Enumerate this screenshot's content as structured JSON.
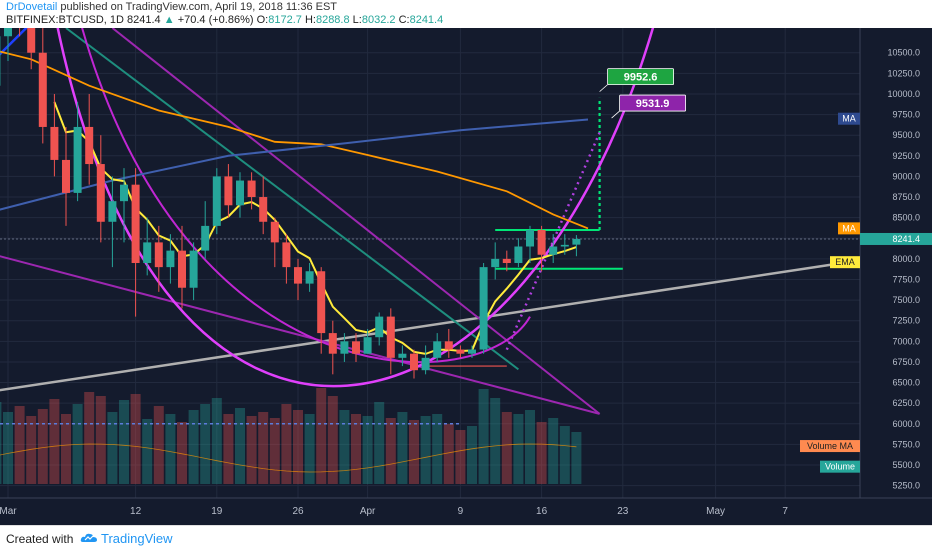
{
  "header": {
    "author": "DrDovetail",
    "published": "published on TradingView.com, April 19, 2018 11:36 EST",
    "symbol": "BITFINEX:BTCUSD, 1D",
    "last": "8241.4",
    "change": "+70.4 (+0.86%)",
    "o_label": "O:",
    "o": "8172.7",
    "h_label": "H:",
    "h": "8288.8",
    "l_label": "L:",
    "l": "8032.2",
    "c_label": "C:",
    "c": "8241.4"
  },
  "footer": {
    "created": "Created with",
    "brand": "TradingView"
  },
  "colors": {
    "background": "#141b2d",
    "up": "#26a69a",
    "down": "#ef5350",
    "ema": "#ffeb3b",
    "ma_orange": "#ff9800",
    "ma_blue": "#3f5fae",
    "purple": "#9c27b0",
    "magenta": "#e040fb",
    "green_level": "#00e676",
    "trend_gray": "#b0b0b0"
  },
  "chart_data": {
    "type": "candlestick",
    "ylim": [
      5100,
      10800
    ],
    "yticks": [
      "10500.0",
      "10250.0",
      "10000.0",
      "9750.0",
      "9500.0",
      "9250.0",
      "9000.0",
      "8750.0",
      "8500.0",
      "8250.0",
      "8000.0",
      "7750.0",
      "7500.0",
      "7250.0",
      "7000.0",
      "6750.0",
      "6500.0",
      "6250.0",
      "6000.0",
      "5750.0",
      "5500.0",
      "5250.0"
    ],
    "xticks": [
      {
        "day": 1,
        "label": "Mar"
      },
      {
        "day": 12,
        "label": "12"
      },
      {
        "day": 19,
        "label": "19"
      },
      {
        "day": 26,
        "label": "26"
      },
      {
        "day": 32,
        "label": "Apr"
      },
      {
        "day": 40,
        "label": "9"
      },
      {
        "day": 47,
        "label": "16"
      },
      {
        "day": 54,
        "label": "23"
      },
      {
        "day": 62,
        "label": "May"
      },
      {
        "day": 68,
        "label": "7"
      }
    ],
    "candles": [
      [
        10900,
        11300,
        9800,
        10100
      ],
      [
        10100,
        11000,
        9900,
        10700
      ],
      [
        10700,
        11200,
        10400,
        11000
      ],
      [
        11000,
        11400,
        10700,
        10800
      ],
      [
        10800,
        11200,
        10300,
        10500
      ],
      [
        10500,
        10900,
        9400,
        9600
      ],
      [
        9600,
        10000,
        9000,
        9200
      ],
      [
        9200,
        9600,
        8400,
        8800
      ],
      [
        8800,
        9900,
        8700,
        9600
      ],
      [
        9600,
        10000,
        8900,
        9150
      ],
      [
        9150,
        9500,
        8200,
        8450
      ],
      [
        8450,
        9000,
        7900,
        8700
      ],
      [
        8700,
        9100,
        8200,
        8900
      ],
      [
        8900,
        9100,
        7300,
        7950
      ],
      [
        7950,
        8500,
        7800,
        8200
      ],
      [
        8200,
        8400,
        7600,
        7900
      ],
      [
        7900,
        8300,
        7700,
        8100
      ],
      [
        8100,
        8400,
        7400,
        7650
      ],
      [
        7650,
        8200,
        7500,
        8100
      ],
      [
        8100,
        8700,
        8000,
        8400
      ],
      [
        8400,
        9100,
        8300,
        9000
      ],
      [
        9000,
        9150,
        8500,
        8650
      ],
      [
        8650,
        9050,
        8500,
        8950
      ],
      [
        8950,
        9050,
        8600,
        8750
      ],
      [
        8750,
        9000,
        8300,
        8450
      ],
      [
        8450,
        8500,
        7900,
        8200
      ],
      [
        8200,
        8300,
        7700,
        7900
      ],
      [
        7900,
        8000,
        7500,
        7700
      ],
      [
        7700,
        7950,
        7600,
        7850
      ],
      [
        7850,
        7900,
        6850,
        7100
      ],
      [
        7100,
        7250,
        6600,
        6850
      ],
      [
        6850,
        7100,
        6750,
        7000
      ],
      [
        7000,
        7100,
        6750,
        6850
      ],
      [
        6850,
        7150,
        6850,
        7050
      ],
      [
        7050,
        7350,
        6950,
        7300
      ],
      [
        7300,
        7400,
        6600,
        6800
      ],
      [
        6800,
        6950,
        6700,
        6850
      ],
      [
        6850,
        6900,
        6550,
        6650
      ],
      [
        6650,
        6950,
        6600,
        6800
      ],
      [
        6800,
        7100,
        6750,
        7000
      ],
      [
        7000,
        7150,
        6800,
        6900
      ],
      [
        6900,
        6950,
        6800,
        6850
      ],
      [
        6850,
        6950,
        6800,
        6900
      ],
      [
        6900,
        7950,
        6850,
        7900
      ],
      [
        7900,
        8200,
        7750,
        8000
      ],
      [
        8000,
        8100,
        7850,
        7950
      ],
      [
        7950,
        8250,
        7900,
        8150
      ],
      [
        8150,
        8400,
        7950,
        8350
      ],
      [
        8350,
        8400,
        7850,
        8050
      ],
      [
        8050,
        8300,
        7950,
        8150
      ],
      [
        8150,
        8300,
        8050,
        8170
      ],
      [
        8172.7,
        8288.8,
        8032.2,
        8241.4
      ]
    ],
    "volume_ma_level": 6000,
    "indicators": [
      "EMA",
      "MA",
      "MA",
      "Volume MA",
      "Volume"
    ],
    "annotations": {
      "target_green": "9952.6",
      "target_purple": "9531.9",
      "last_price": "8241.4"
    },
    "axis_labels": {
      "ma_blue": "MA",
      "ma_orange": "MA",
      "ema": "EMA",
      "volume_ma": "Volume MA",
      "volume": "Volume"
    }
  }
}
